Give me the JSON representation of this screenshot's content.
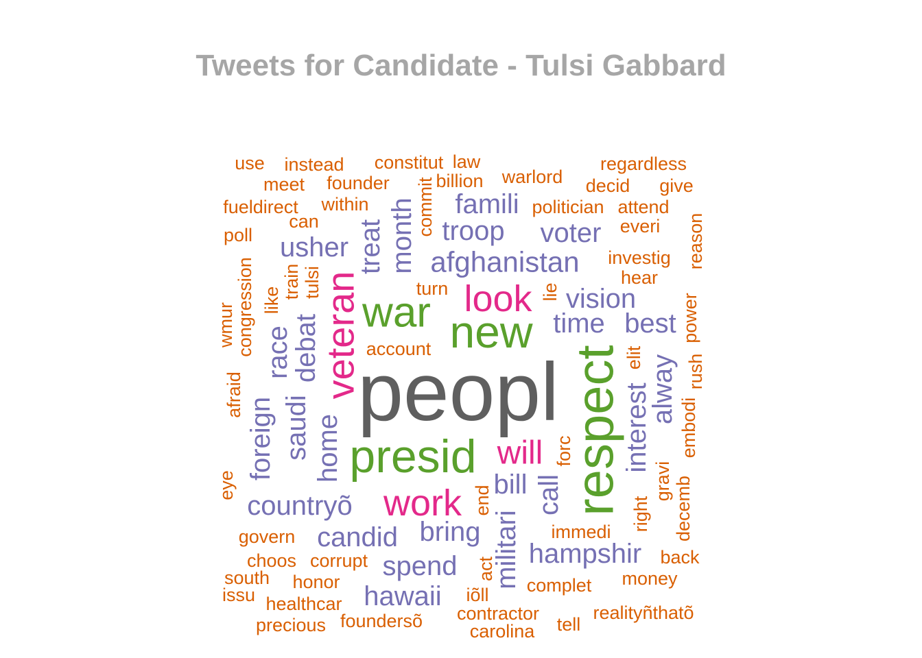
{
  "title": "Tweets for Candidate - Tulsi Gabbard",
  "palette": {
    "gray": "#5f5f5f",
    "green": "#5aa02c",
    "magenta": "#e3298a",
    "purple": "#7570b3",
    "orange": "#d95f02"
  },
  "chart_data": {
    "type": "wordcloud",
    "title": "Tweets for Candidate - Tulsi Gabbard",
    "words": [
      {
        "text": "peopl",
        "color": "gray",
        "rotate": 0
      },
      {
        "text": "presid",
        "color": "green",
        "rotate": 0
      },
      {
        "text": "respect",
        "color": "green",
        "rotate": -90
      },
      {
        "text": "new",
        "color": "green",
        "rotate": 0
      },
      {
        "text": "war",
        "color": "green",
        "rotate": 0
      },
      {
        "text": "veteran",
        "color": "magenta",
        "rotate": -90
      },
      {
        "text": "look",
        "color": "magenta",
        "rotate": 0
      },
      {
        "text": "work",
        "color": "magenta",
        "rotate": 0
      },
      {
        "text": "will",
        "color": "magenta",
        "rotate": 0
      },
      {
        "text": "afghanistan",
        "color": "purple",
        "rotate": 0
      },
      {
        "text": "hampshir",
        "color": "purple",
        "rotate": 0
      },
      {
        "text": "countryõ",
        "color": "purple",
        "rotate": 0
      },
      {
        "text": "famili",
        "color": "purple",
        "rotate": 0
      },
      {
        "text": "troop",
        "color": "purple",
        "rotate": 0
      },
      {
        "text": "voter",
        "color": "purple",
        "rotate": 0
      },
      {
        "text": "usher",
        "color": "purple",
        "rotate": 0
      },
      {
        "text": "vision",
        "color": "purple",
        "rotate": 0
      },
      {
        "text": "time",
        "color": "purple",
        "rotate": 0
      },
      {
        "text": "best",
        "color": "purple",
        "rotate": 0
      },
      {
        "text": "candid",
        "color": "purple",
        "rotate": 0
      },
      {
        "text": "bring",
        "color": "purple",
        "rotate": 0
      },
      {
        "text": "spend",
        "color": "purple",
        "rotate": 0
      },
      {
        "text": "hawaii",
        "color": "purple",
        "rotate": 0
      },
      {
        "text": "bill",
        "color": "purple",
        "rotate": 0
      },
      {
        "text": "militari",
        "color": "purple",
        "rotate": -90
      },
      {
        "text": "call",
        "color": "purple",
        "rotate": -90
      },
      {
        "text": "interest",
        "color": "purple",
        "rotate": -90
      },
      {
        "text": "alway",
        "color": "purple",
        "rotate": -90
      },
      {
        "text": "treat",
        "color": "purple",
        "rotate": -90
      },
      {
        "text": "month",
        "color": "purple",
        "rotate": -90
      },
      {
        "text": "home",
        "color": "purple",
        "rotate": -90
      },
      {
        "text": "saudi",
        "color": "purple",
        "rotate": -90
      },
      {
        "text": "debat",
        "color": "purple",
        "rotate": -90
      },
      {
        "text": "race",
        "color": "purple",
        "rotate": -90
      },
      {
        "text": "foreign",
        "color": "purple",
        "rotate": -90
      },
      {
        "text": "use",
        "color": "orange",
        "rotate": 0
      },
      {
        "text": "instead",
        "color": "orange",
        "rotate": 0
      },
      {
        "text": "constitut",
        "color": "orange",
        "rotate": 0
      },
      {
        "text": "law",
        "color": "orange",
        "rotate": 0
      },
      {
        "text": "regardless",
        "color": "orange",
        "rotate": 0
      },
      {
        "text": "meet",
        "color": "orange",
        "rotate": 0
      },
      {
        "text": "founder",
        "color": "orange",
        "rotate": 0
      },
      {
        "text": "billion",
        "color": "orange",
        "rotate": 0
      },
      {
        "text": "warlord",
        "color": "orange",
        "rotate": 0
      },
      {
        "text": "decid",
        "color": "orange",
        "rotate": 0
      },
      {
        "text": "give",
        "color": "orange",
        "rotate": 0
      },
      {
        "text": "fueldirect",
        "color": "orange",
        "rotate": 0
      },
      {
        "text": "within",
        "color": "orange",
        "rotate": 0
      },
      {
        "text": "politician",
        "color": "orange",
        "rotate": 0
      },
      {
        "text": "attend",
        "color": "orange",
        "rotate": 0
      },
      {
        "text": "can",
        "color": "orange",
        "rotate": 0
      },
      {
        "text": "everi",
        "color": "orange",
        "rotate": 0
      },
      {
        "text": "poll",
        "color": "orange",
        "rotate": 0
      },
      {
        "text": "investig",
        "color": "orange",
        "rotate": 0
      },
      {
        "text": "hear",
        "color": "orange",
        "rotate": 0
      },
      {
        "text": "turn",
        "color": "orange",
        "rotate": 0
      },
      {
        "text": "account",
        "color": "orange",
        "rotate": 0
      },
      {
        "text": "immedi",
        "color": "orange",
        "rotate": 0
      },
      {
        "text": "govern",
        "color": "orange",
        "rotate": 0
      },
      {
        "text": "choos",
        "color": "orange",
        "rotate": 0
      },
      {
        "text": "corrupt",
        "color": "orange",
        "rotate": 0
      },
      {
        "text": "south",
        "color": "orange",
        "rotate": 0
      },
      {
        "text": "honor",
        "color": "orange",
        "rotate": 0
      },
      {
        "text": "issu",
        "color": "orange",
        "rotate": 0
      },
      {
        "text": "healthcar",
        "color": "orange",
        "rotate": 0
      },
      {
        "text": "precious",
        "color": "orange",
        "rotate": 0
      },
      {
        "text": "foundersõ",
        "color": "orange",
        "rotate": 0
      },
      {
        "text": "iõll",
        "color": "orange",
        "rotate": 0
      },
      {
        "text": "complet",
        "color": "orange",
        "rotate": 0
      },
      {
        "text": "contractor",
        "color": "orange",
        "rotate": 0
      },
      {
        "text": "carolina",
        "color": "orange",
        "rotate": 0
      },
      {
        "text": "tell",
        "color": "orange",
        "rotate": 0
      },
      {
        "text": "realityñthatõ",
        "color": "orange",
        "rotate": 0
      },
      {
        "text": "money",
        "color": "orange",
        "rotate": 0
      },
      {
        "text": "back",
        "color": "orange",
        "rotate": 0
      },
      {
        "text": "commit",
        "color": "orange",
        "rotate": -90
      },
      {
        "text": "reason",
        "color": "orange",
        "rotate": -90
      },
      {
        "text": "congression",
        "color": "orange",
        "rotate": -90
      },
      {
        "text": "wmur",
        "color": "orange",
        "rotate": -90
      },
      {
        "text": "like",
        "color": "orange",
        "rotate": -90
      },
      {
        "text": "train",
        "color": "orange",
        "rotate": -90
      },
      {
        "text": "tulsi",
        "color": "orange",
        "rotate": -90
      },
      {
        "text": "lie",
        "color": "orange",
        "rotate": -90
      },
      {
        "text": "power",
        "color": "orange",
        "rotate": -90
      },
      {
        "text": "elit",
        "color": "orange",
        "rotate": -90
      },
      {
        "text": "rush",
        "color": "orange",
        "rotate": -90
      },
      {
        "text": "afraid",
        "color": "orange",
        "rotate": -90
      },
      {
        "text": "embodi",
        "color": "orange",
        "rotate": -90
      },
      {
        "text": "forc",
        "color": "orange",
        "rotate": -90
      },
      {
        "text": "eye",
        "color": "orange",
        "rotate": -90
      },
      {
        "text": "end",
        "color": "orange",
        "rotate": -90
      },
      {
        "text": "act",
        "color": "orange",
        "rotate": -90
      },
      {
        "text": "right",
        "color": "orange",
        "rotate": -90
      },
      {
        "text": "gravi",
        "color": "orange",
        "rotate": -90
      },
      {
        "text": "decemb",
        "color": "orange",
        "rotate": -90
      }
    ]
  }
}
